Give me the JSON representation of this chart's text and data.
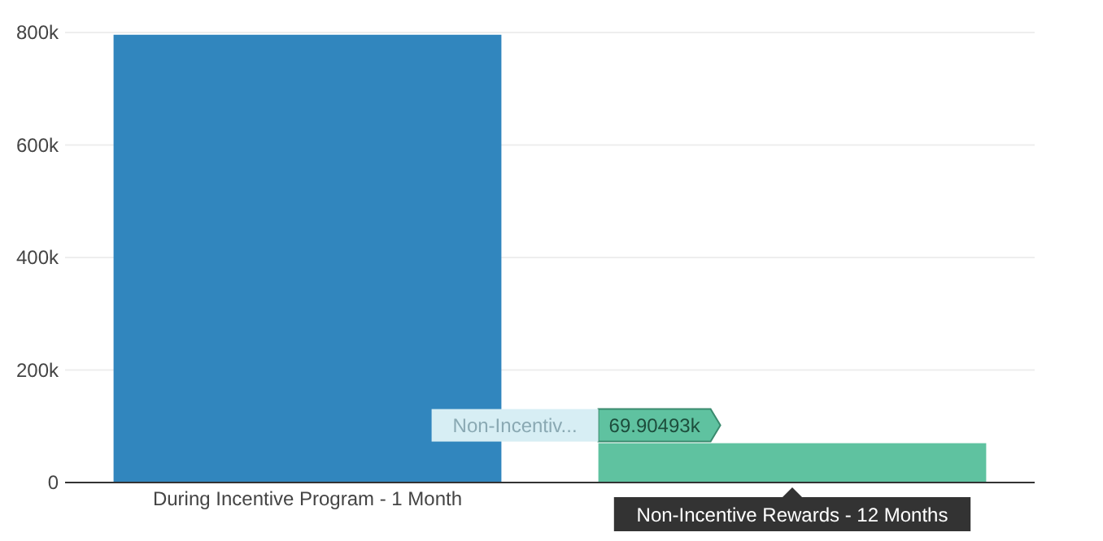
{
  "chart_data": {
    "type": "bar",
    "categories": [
      "During Incentive Program - 1 Month",
      "Non-Incentive Rewards - 12 Months"
    ],
    "values": [
      796000,
      69904.93
    ],
    "colors": [
      "#3186be",
      "#5fc2a0"
    ],
    "value_labels": [
      null,
      "69.90493k"
    ],
    "annotations": [
      "Non-Incentiv..."
    ],
    "ylim": [
      0,
      800000
    ],
    "yticks": [
      {
        "value": 0,
        "label": "0"
      },
      {
        "value": 200000,
        "label": "200k"
      },
      {
        "value": 400000,
        "label": "400k"
      },
      {
        "value": 600000,
        "label": "600k"
      },
      {
        "value": 800000,
        "label": "800k"
      }
    ],
    "grid": "y"
  }
}
